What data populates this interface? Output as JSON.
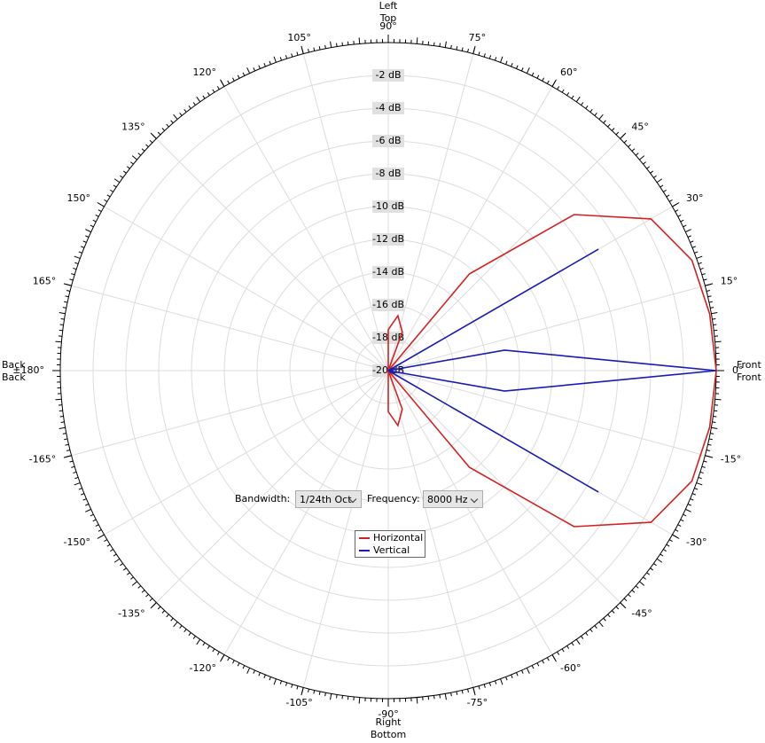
{
  "chart_data": {
    "type": "polar",
    "axis_labels": {
      "left": "Left",
      "top": "Top",
      "right": "Right",
      "bottom": "Bottom",
      "front_h": "Front",
      "front_v": "Front",
      "back_h": "Back",
      "back_v": "Back"
    },
    "x": [
      -180,
      -170,
      -160,
      -150,
      -140,
      -130,
      -120,
      -110,
      -100,
      -90,
      -80,
      -70,
      -60,
      -50,
      -40,
      -30,
      -20,
      -10,
      0,
      10,
      20,
      30,
      40,
      50,
      60,
      70,
      80,
      90,
      100,
      110,
      120,
      130,
      140,
      150,
      160,
      170,
      180
    ],
    "series": [
      {
        "name": "Horizontal",
        "color": "#d42020",
        "values": [
          -20,
          -20,
          -20,
          -20,
          -20,
          -20,
          -20,
          -20,
          -20,
          -17.5,
          -16.6,
          -17.5,
          -20,
          -12.3,
          -5.2,
          -1.5,
          -0.3,
          -0.1,
          0,
          -0.1,
          -0.3,
          -1.5,
          -5.2,
          -12.3,
          -20,
          -17.5,
          -16.6,
          -17.5,
          -20,
          -20,
          -20,
          -20,
          -20,
          -20,
          -20,
          -20,
          -20
        ]
      },
      {
        "name": "Vertical",
        "color": "#1a1ab8",
        "values": [
          -20,
          -20,
          -20,
          -20,
          -20,
          -20,
          -20,
          -20,
          -20,
          -20,
          -20,
          -20,
          -20,
          -20,
          -20,
          -5.2,
          -20,
          -12.8,
          0,
          -12.8,
          -20,
          -5.2,
          -20,
          -20,
          -20,
          -20,
          -20,
          -20,
          -20,
          -20,
          -20,
          -20,
          -20,
          -20,
          -20,
          -20,
          -20
        ]
      }
    ],
    "ylim": [
      -20,
      0
    ],
    "yticks": [
      {
        "value": -20,
        "label": "-20 dB"
      },
      {
        "value": -18,
        "label": "-18 dB"
      },
      {
        "value": -16,
        "label": "-16 dB"
      },
      {
        "value": -14,
        "label": "-14 dB"
      },
      {
        "value": -12,
        "label": "-12 dB"
      },
      {
        "value": -10,
        "label": "-10 dB"
      },
      {
        "value": -8,
        "label": "-8 dB"
      },
      {
        "value": -6,
        "label": "-6 dB"
      },
      {
        "value": -4,
        "label": "-4 dB"
      },
      {
        "value": -2,
        "label": "-2 dB"
      }
    ],
    "xticks": [
      {
        "value": -165,
        "label": "-165°"
      },
      {
        "value": -150,
        "label": "-150°"
      },
      {
        "value": -135,
        "label": "-135°"
      },
      {
        "value": -120,
        "label": "-120°"
      },
      {
        "value": -105,
        "label": "-105°"
      },
      {
        "value": -90,
        "label": "-90°"
      },
      {
        "value": -75,
        "label": "-75°"
      },
      {
        "value": -60,
        "label": "-60°"
      },
      {
        "value": -45,
        "label": "-45°"
      },
      {
        "value": -30,
        "label": "-30°"
      },
      {
        "value": -15,
        "label": "-15°"
      },
      {
        "value": 0,
        "label": "0°"
      },
      {
        "value": 15,
        "label": "15°"
      },
      {
        "value": 30,
        "label": "30°"
      },
      {
        "value": 45,
        "label": "45°"
      },
      {
        "value": 60,
        "label": "60°"
      },
      {
        "value": 75,
        "label": "75°"
      },
      {
        "value": 90,
        "label": "90°"
      },
      {
        "value": 105,
        "label": "105°"
      },
      {
        "value": 120,
        "label": "120°"
      },
      {
        "value": 135,
        "label": "135°"
      },
      {
        "value": 150,
        "label": "150°"
      },
      {
        "value": 165,
        "label": "165°"
      },
      {
        "value": 180,
        "label": "±180°"
      }
    ],
    "grid": true
  },
  "controls": {
    "bandwidth_label": "Bandwidth:",
    "bandwidth": "1/24th Oct",
    "frequency_label": "Frequency:",
    "frequency": "8000 Hz"
  }
}
